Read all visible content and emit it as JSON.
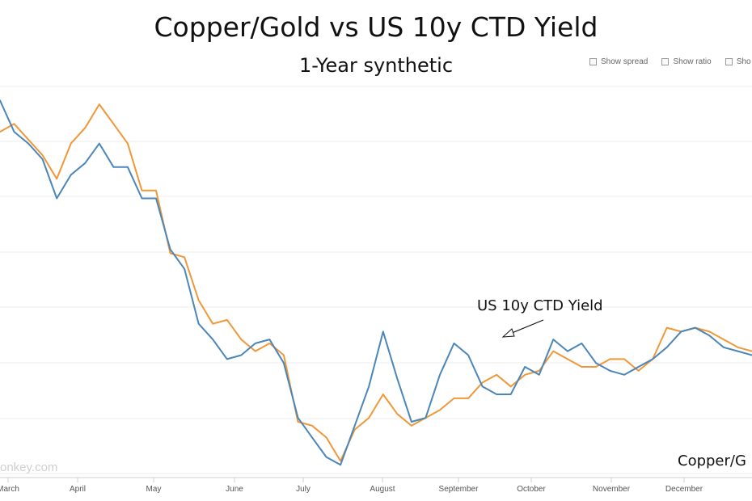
{
  "title": "Copper/Gold vs US 10y CTD Yield",
  "subtitle": "1-Year synthetic",
  "toggles": [
    "Show spread",
    "Show ratio",
    "Sho"
  ],
  "watermark": "onkey.com",
  "chart_data": {
    "type": "line",
    "x_labels": [
      "March",
      "April",
      "May",
      "June",
      "July",
      "August",
      "September",
      "October",
      "November",
      "December"
    ],
    "xlim": [
      0,
      53
    ],
    "ylim": [
      0,
      100
    ],
    "grid": true,
    "annotations": [
      "US 10y CTD Yield",
      "Copper/G"
    ],
    "colors": {
      "yield": "#4a86b8",
      "copper_gold": "#f0973a"
    },
    "series": [
      {
        "name": "US 10y CTD Yield",
        "x": [
          0,
          1,
          2,
          3,
          4,
          5,
          6,
          7,
          8,
          9,
          10,
          11,
          12,
          13,
          14,
          15,
          16,
          17,
          18,
          19,
          20,
          21,
          22,
          23,
          24,
          25,
          26,
          27,
          28,
          29,
          30,
          31,
          32,
          33,
          34,
          35,
          36,
          37,
          38,
          39,
          40,
          41,
          42,
          43,
          44,
          45,
          46,
          47,
          48,
          49,
          50,
          51,
          52,
          53
        ],
        "values": [
          95,
          87,
          84,
          80,
          70,
          76,
          79,
          84,
          78,
          78,
          70,
          70,
          57,
          52,
          38,
          34,
          29,
          30,
          33,
          34,
          28,
          14,
          9,
          4,
          2,
          12,
          22,
          36,
          24,
          13,
          14,
          25,
          33,
          30,
          22,
          20,
          20,
          27,
          25,
          34,
          31,
          33,
          28,
          26,
          25,
          27,
          29,
          32,
          36,
          37,
          35,
          32,
          31,
          30
        ]
      },
      {
        "name": "Copper/Gold",
        "x": [
          0,
          1,
          2,
          3,
          4,
          5,
          6,
          7,
          8,
          9,
          10,
          11,
          12,
          13,
          14,
          15,
          16,
          17,
          18,
          19,
          20,
          21,
          22,
          23,
          24,
          25,
          26,
          27,
          28,
          29,
          30,
          31,
          32,
          33,
          34,
          35,
          36,
          37,
          38,
          39,
          40,
          41,
          42,
          43,
          44,
          45,
          46,
          47,
          48,
          49,
          50,
          51,
          52,
          53
        ],
        "values": [
          87,
          89,
          85,
          81,
          75,
          84,
          88,
          94,
          89,
          84,
          72,
          72,
          56,
          55,
          44,
          38,
          39,
          34,
          31,
          33,
          30,
          13,
          12,
          9,
          3,
          11,
          14,
          20,
          15,
          12,
          14,
          16,
          19,
          19,
          23,
          25,
          22,
          25,
          26,
          31,
          29,
          27,
          27,
          29,
          29,
          26,
          29,
          37,
          36,
          37,
          36,
          34,
          32,
          31
        ]
      }
    ]
  }
}
